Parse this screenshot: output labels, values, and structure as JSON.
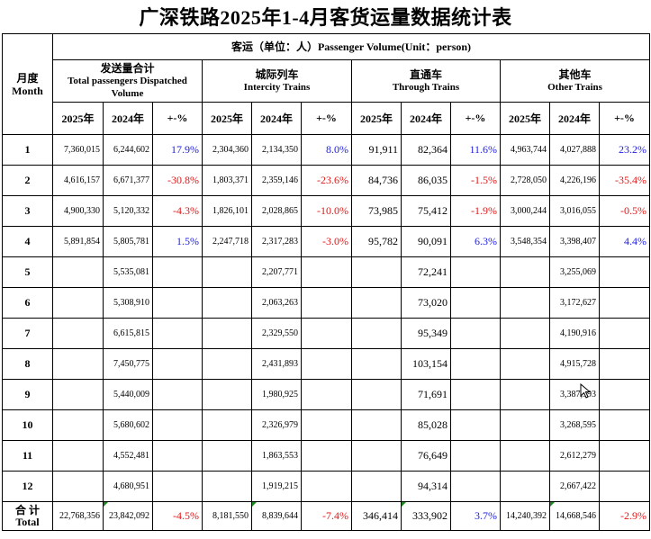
{
  "title": "广深铁路2025年1-4月客货运量数据统计表",
  "section_header": "客运（单位：人）Passenger Volume(Unit：person)",
  "month_header": {
    "zh": "月度",
    "en": "Month"
  },
  "groups": [
    {
      "zh": "发送量合计",
      "en": "Total passengers Dispatched Volume"
    },
    {
      "zh": "城际列车",
      "en": "Intercity Trains"
    },
    {
      "zh": "直通车",
      "en": "Through Trains"
    },
    {
      "zh": "其他车",
      "en": "Other Trains"
    }
  ],
  "subheaders": [
    "2025年",
    "2024年",
    "+-%"
  ],
  "rows": [
    {
      "month": "1",
      "cells": [
        [
          "7,360,015",
          "6,244,602",
          "17.9%"
        ],
        [
          "2,304,360",
          "2,134,350",
          "8.0%"
        ],
        [
          "91,911",
          "82,364",
          "11.6%"
        ],
        [
          "4,963,744",
          "4,027,888",
          "23.2%"
        ]
      ]
    },
    {
      "month": "2",
      "cells": [
        [
          "4,616,157",
          "6,671,377",
          "-30.8%"
        ],
        [
          "1,803,371",
          "2,359,146",
          "-23.6%"
        ],
        [
          "84,736",
          "86,035",
          "-1.5%"
        ],
        [
          "2,728,050",
          "4,226,196",
          "-35.4%"
        ]
      ]
    },
    {
      "month": "3",
      "cells": [
        [
          "4,900,330",
          "5,120,332",
          "-4.3%"
        ],
        [
          "1,826,101",
          "2,028,865",
          "-10.0%"
        ],
        [
          "73,985",
          "75,412",
          "-1.9%"
        ],
        [
          "3,000,244",
          "3,016,055",
          "-0.5%"
        ]
      ]
    },
    {
      "month": "4",
      "cells": [
        [
          "5,891,854",
          "5,805,781",
          "1.5%"
        ],
        [
          "2,247,718",
          "2,317,283",
          "-3.0%"
        ],
        [
          "95,782",
          "90,091",
          "6.3%"
        ],
        [
          "3,548,354",
          "3,398,407",
          "4.4%"
        ]
      ]
    },
    {
      "month": "5",
      "cells": [
        [
          "",
          "5,535,081",
          ""
        ],
        [
          "",
          "2,207,771",
          ""
        ],
        [
          "",
          "72,241",
          ""
        ],
        [
          "",
          "3,255,069",
          ""
        ]
      ]
    },
    {
      "month": "6",
      "cells": [
        [
          "",
          "5,308,910",
          ""
        ],
        [
          "",
          "2,063,263",
          ""
        ],
        [
          "",
          "73,020",
          ""
        ],
        [
          "",
          "3,172,627",
          ""
        ]
      ]
    },
    {
      "month": "7",
      "cells": [
        [
          "",
          "6,615,815",
          ""
        ],
        [
          "",
          "2,329,550",
          ""
        ],
        [
          "",
          "95,349",
          ""
        ],
        [
          "",
          "4,190,916",
          ""
        ]
      ]
    },
    {
      "month": "8",
      "cells": [
        [
          "",
          "7,450,775",
          ""
        ],
        [
          "",
          "2,431,893",
          ""
        ],
        [
          "",
          "103,154",
          ""
        ],
        [
          "",
          "4,915,728",
          ""
        ]
      ]
    },
    {
      "month": "9",
      "cells": [
        [
          "",
          "5,440,009",
          ""
        ],
        [
          "",
          "1,980,925",
          ""
        ],
        [
          "",
          "71,691",
          ""
        ],
        [
          "",
          "3,387,393",
          ""
        ]
      ]
    },
    {
      "month": "10",
      "cells": [
        [
          "",
          "5,680,602",
          ""
        ],
        [
          "",
          "2,326,979",
          ""
        ],
        [
          "",
          "85,028",
          ""
        ],
        [
          "",
          "3,268,595",
          ""
        ]
      ]
    },
    {
      "month": "11",
      "cells": [
        [
          "",
          "4,552,481",
          ""
        ],
        [
          "",
          "1,863,553",
          ""
        ],
        [
          "",
          "76,649",
          ""
        ],
        [
          "",
          "2,612,279",
          ""
        ]
      ]
    },
    {
      "month": "12",
      "cells": [
        [
          "",
          "4,680,951",
          ""
        ],
        [
          "",
          "1,919,215",
          ""
        ],
        [
          "",
          "94,314",
          ""
        ],
        [
          "",
          "2,667,422",
          ""
        ]
      ]
    }
  ],
  "total": {
    "label_zh": "合 计",
    "label_en": "Total",
    "cells": [
      [
        "22,768,356",
        "23,842,092",
        "-4.5%"
      ],
      [
        "8,181,550",
        "8,839,644",
        "-7.4%"
      ],
      [
        "346,414",
        "333,902",
        "3.7%"
      ],
      [
        "14,240,392",
        "14,668,546",
        "-2.9%"
      ]
    ]
  },
  "colors": {
    "positive": "#1f1fe0",
    "negative": "#e01a1a",
    "comment_flag": "#1a8a1a"
  },
  "icons": {
    "cursor": "mouse-pointer-icon"
  }
}
